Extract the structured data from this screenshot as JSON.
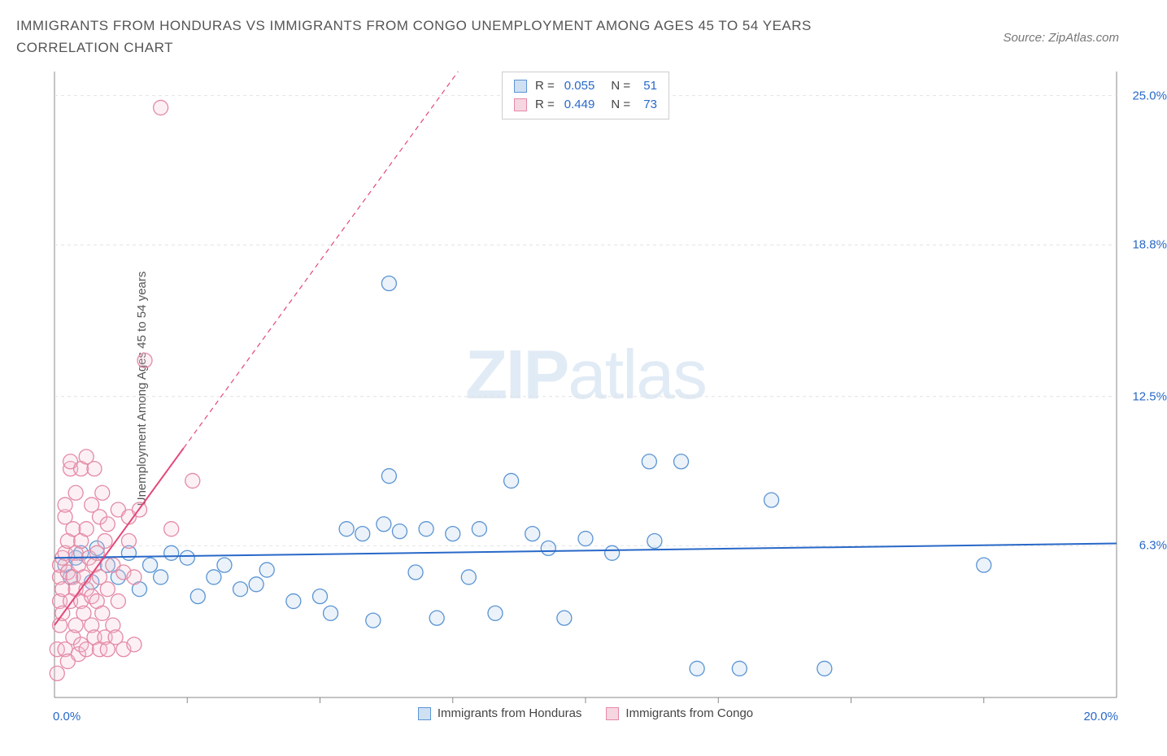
{
  "title": "IMMIGRANTS FROM HONDURAS VS IMMIGRANTS FROM CONGO UNEMPLOYMENT AMONG AGES 45 TO 54 YEARS CORRELATION CHART",
  "source": "Source: ZipAtlas.com",
  "watermark_a": "ZIP",
  "watermark_b": "atlas",
  "y_axis_label": "Unemployment Among Ages 45 to 54 years",
  "chart": {
    "type": "scatter",
    "background_color": "#ffffff",
    "grid_color": "#e2e2e2",
    "axis_color": "#888888",
    "tick_color": "#888888",
    "label_color_axis": "#2868c8",
    "xlim": [
      0,
      20
    ],
    "ylim": [
      0,
      26
    ],
    "x_min_label": "0.0%",
    "x_max_label": "20.0%",
    "y_ticks": [
      {
        "v": 6.3,
        "label": "6.3%"
      },
      {
        "v": 12.5,
        "label": "12.5%"
      },
      {
        "v": 18.8,
        "label": "18.8%"
      },
      {
        "v": 25.0,
        "label": "25.0%"
      }
    ],
    "y_gridlines": [
      6.3,
      12.5,
      18.8,
      25.0
    ],
    "x_tick_positions": [
      2.5,
      5.0,
      7.5,
      10.0,
      12.5,
      15.0,
      17.5
    ],
    "marker_radius": 9,
    "marker_stroke_width": 1.3,
    "marker_fill_opacity": 0.25,
    "series": [
      {
        "name": "Immigrants from Honduras",
        "color_stroke": "#5a94d4",
        "color_fill": "#aecbe9",
        "trend_line_color": "#2868c8",
        "trend_line_width": 2,
        "trend_line_dash": "none",
        "trend_start": {
          "x": 0,
          "y": 5.8
        },
        "trend_end": {
          "x": 20,
          "y": 6.4
        },
        "points": [
          {
            "x": 0.2,
            "y": 5.5
          },
          {
            "x": 0.3,
            "y": 5.0
          },
          {
            "x": 0.4,
            "y": 5.8
          },
          {
            "x": 0.5,
            "y": 6.0
          },
          {
            "x": 0.7,
            "y": 4.8
          },
          {
            "x": 0.8,
            "y": 6.2
          },
          {
            "x": 1.0,
            "y": 5.5
          },
          {
            "x": 1.2,
            "y": 5.0
          },
          {
            "x": 1.4,
            "y": 6.0
          },
          {
            "x": 1.6,
            "y": 4.5
          },
          {
            "x": 1.8,
            "y": 5.5
          },
          {
            "x": 2.0,
            "y": 5.0
          },
          {
            "x": 2.2,
            "y": 6.0
          },
          {
            "x": 2.5,
            "y": 5.8
          },
          {
            "x": 2.7,
            "y": 4.2
          },
          {
            "x": 3.0,
            "y": 5.0
          },
          {
            "x": 3.2,
            "y": 5.5
          },
          {
            "x": 3.5,
            "y": 4.5
          },
          {
            "x": 3.8,
            "y": 4.7
          },
          {
            "x": 4.0,
            "y": 5.3
          },
          {
            "x": 4.5,
            "y": 4.0
          },
          {
            "x": 5.0,
            "y": 4.2
          },
          {
            "x": 5.2,
            "y": 3.5
          },
          {
            "x": 5.5,
            "y": 7.0
          },
          {
            "x": 5.8,
            "y": 6.8
          },
          {
            "x": 6.0,
            "y": 3.2
          },
          {
            "x": 6.2,
            "y": 7.2
          },
          {
            "x": 6.3,
            "y": 9.2
          },
          {
            "x": 6.3,
            "y": 17.2
          },
          {
            "x": 6.5,
            "y": 6.9
          },
          {
            "x": 6.8,
            "y": 5.2
          },
          {
            "x": 7.0,
            "y": 7.0
          },
          {
            "x": 7.2,
            "y": 3.3
          },
          {
            "x": 7.5,
            "y": 6.8
          },
          {
            "x": 7.8,
            "y": 5.0
          },
          {
            "x": 8.0,
            "y": 7.0
          },
          {
            "x": 8.3,
            "y": 3.5
          },
          {
            "x": 8.6,
            "y": 9.0
          },
          {
            "x": 9.0,
            "y": 6.8
          },
          {
            "x": 9.3,
            "y": 6.2
          },
          {
            "x": 9.6,
            "y": 3.3
          },
          {
            "x": 10.0,
            "y": 6.6
          },
          {
            "x": 10.5,
            "y": 6.0
          },
          {
            "x": 11.2,
            "y": 9.8
          },
          {
            "x": 11.3,
            "y": 6.5
          },
          {
            "x": 11.8,
            "y": 9.8
          },
          {
            "x": 12.1,
            "y": 1.2
          },
          {
            "x": 12.9,
            "y": 1.2
          },
          {
            "x": 13.5,
            "y": 8.2
          },
          {
            "x": 14.5,
            "y": 1.2
          },
          {
            "x": 17.5,
            "y": 5.5
          }
        ]
      },
      {
        "name": "Immigrants from Congo",
        "color_stroke": "#e48aa5",
        "color_fill": "#f4c4d3",
        "trend_line_color": "#e24878",
        "trend_line_width": 2,
        "trend_line_dash": "6,5",
        "trend_start": {
          "x": 0,
          "y": 3.0
        },
        "trend_end": {
          "x": 7.6,
          "y": 26.0
        },
        "points": [
          {
            "x": 0.05,
            "y": 1.0
          },
          {
            "x": 0.05,
            "y": 2.0
          },
          {
            "x": 0.1,
            "y": 3.0
          },
          {
            "x": 0.1,
            "y": 4.0
          },
          {
            "x": 0.1,
            "y": 5.0
          },
          {
            "x": 0.1,
            "y": 5.5
          },
          {
            "x": 0.15,
            "y": 5.8
          },
          {
            "x": 0.15,
            "y": 4.5
          },
          {
            "x": 0.15,
            "y": 3.5
          },
          {
            "x": 0.2,
            "y": 6.0
          },
          {
            "x": 0.2,
            "y": 2.0
          },
          {
            "x": 0.2,
            "y": 7.5
          },
          {
            "x": 0.2,
            "y": 8.0
          },
          {
            "x": 0.25,
            "y": 1.5
          },
          {
            "x": 0.25,
            "y": 5.2
          },
          {
            "x": 0.25,
            "y": 6.5
          },
          {
            "x": 0.3,
            "y": 4.0
          },
          {
            "x": 0.3,
            "y": 9.5
          },
          {
            "x": 0.3,
            "y": 9.8
          },
          {
            "x": 0.35,
            "y": 2.5
          },
          {
            "x": 0.35,
            "y": 5.0
          },
          {
            "x": 0.35,
            "y": 7.0
          },
          {
            "x": 0.4,
            "y": 3.0
          },
          {
            "x": 0.4,
            "y": 4.5
          },
          {
            "x": 0.4,
            "y": 6.0
          },
          {
            "x": 0.4,
            "y": 8.5
          },
          {
            "x": 0.45,
            "y": 1.8
          },
          {
            "x": 0.45,
            "y": 5.5
          },
          {
            "x": 0.5,
            "y": 2.2
          },
          {
            "x": 0.5,
            "y": 4.0
          },
          {
            "x": 0.5,
            "y": 6.5
          },
          {
            "x": 0.5,
            "y": 9.5
          },
          {
            "x": 0.55,
            "y": 3.5
          },
          {
            "x": 0.55,
            "y": 5.0
          },
          {
            "x": 0.6,
            "y": 2.0
          },
          {
            "x": 0.6,
            "y": 4.5
          },
          {
            "x": 0.6,
            "y": 7.0
          },
          {
            "x": 0.6,
            "y": 10.0
          },
          {
            "x": 0.65,
            "y": 5.8
          },
          {
            "x": 0.7,
            "y": 3.0
          },
          {
            "x": 0.7,
            "y": 4.2
          },
          {
            "x": 0.7,
            "y": 8.0
          },
          {
            "x": 0.75,
            "y": 2.5
          },
          {
            "x": 0.75,
            "y": 5.5
          },
          {
            "x": 0.75,
            "y": 9.5
          },
          {
            "x": 0.8,
            "y": 4.0
          },
          {
            "x": 0.8,
            "y": 6.0
          },
          {
            "x": 0.85,
            "y": 2.0
          },
          {
            "x": 0.85,
            "y": 5.0
          },
          {
            "x": 0.85,
            "y": 7.5
          },
          {
            "x": 0.9,
            "y": 3.5
          },
          {
            "x": 0.9,
            "y": 8.5
          },
          {
            "x": 0.95,
            "y": 2.5
          },
          {
            "x": 0.95,
            "y": 6.5
          },
          {
            "x": 1.0,
            "y": 4.5
          },
          {
            "x": 1.0,
            "y": 2.0
          },
          {
            "x": 1.0,
            "y": 7.2
          },
          {
            "x": 1.1,
            "y": 3.0
          },
          {
            "x": 1.1,
            "y": 5.5
          },
          {
            "x": 1.15,
            "y": 2.5
          },
          {
            "x": 1.2,
            "y": 4.0
          },
          {
            "x": 1.2,
            "y": 7.8
          },
          {
            "x": 1.3,
            "y": 5.2
          },
          {
            "x": 1.3,
            "y": 2.0
          },
          {
            "x": 1.4,
            "y": 6.5
          },
          {
            "x": 1.4,
            "y": 7.5
          },
          {
            "x": 1.5,
            "y": 2.2
          },
          {
            "x": 1.5,
            "y": 5.0
          },
          {
            "x": 1.6,
            "y": 7.8
          },
          {
            "x": 1.7,
            "y": 14.0
          },
          {
            "x": 2.0,
            "y": 24.5
          },
          {
            "x": 2.2,
            "y": 7.0
          },
          {
            "x": 2.6,
            "y": 9.0
          }
        ]
      }
    ]
  },
  "stats": [
    {
      "color_fill": "#cfe0f2",
      "color_stroke": "#5a94d4",
      "R_label": "R =",
      "R": "0.055",
      "N_label": "N =",
      "N": "51"
    },
    {
      "color_fill": "#f6d6e0",
      "color_stroke": "#e48aa5",
      "R_label": "R =",
      "R": "0.449",
      "N_label": "N =",
      "N": "73"
    }
  ],
  "legend": [
    {
      "label": "Immigrants from Honduras",
      "fill": "#cfe0f2",
      "stroke": "#5a94d4"
    },
    {
      "label": "Immigrants from Congo",
      "fill": "#f6d6e0",
      "stroke": "#e48aa5"
    }
  ]
}
